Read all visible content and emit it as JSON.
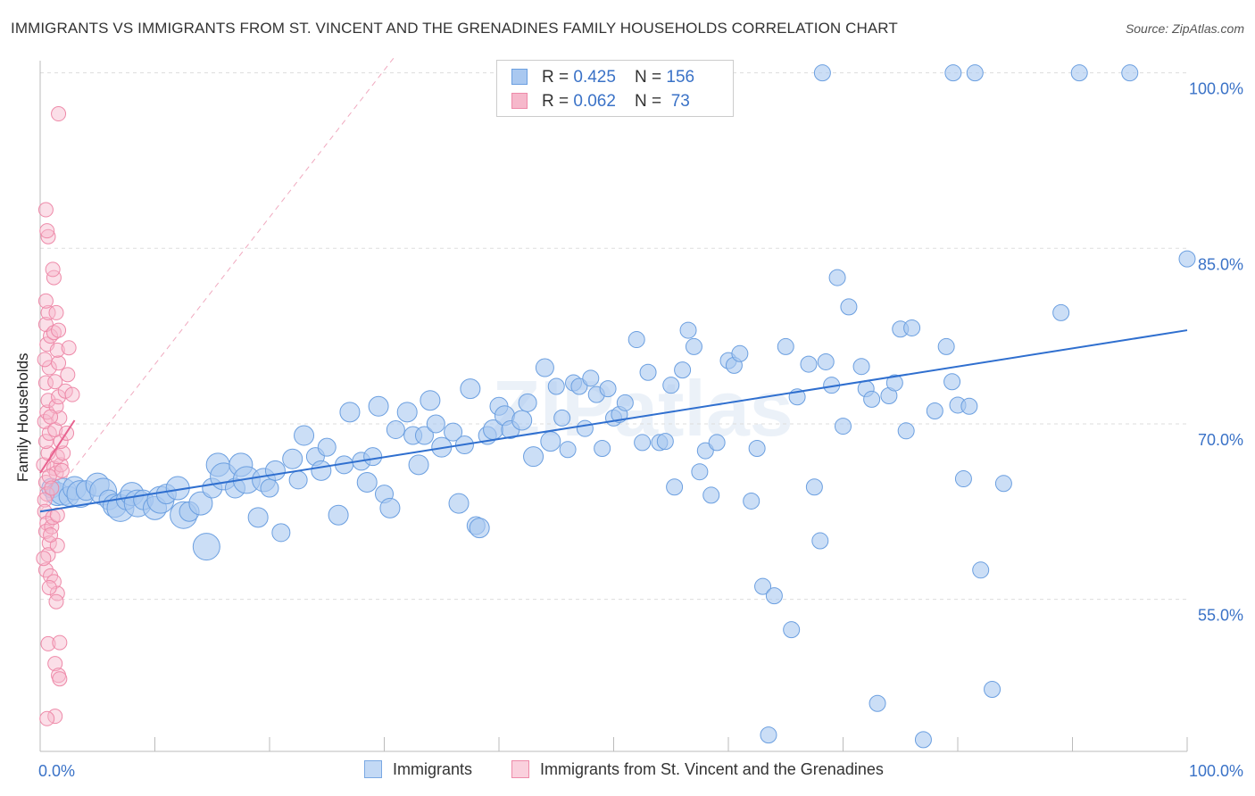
{
  "title": "IMMIGRANTS VS IMMIGRANTS FROM ST. VINCENT AND THE GRENADINES FAMILY HOUSEHOLDS CORRELATION CHART",
  "source": "Source: ZipAtlas.com",
  "watermark": "ZIPatlas",
  "colors": {
    "blue_fill": "#a9c8f0",
    "blue_stroke": "#6b9fe0",
    "blue_line": "#2f6fcf",
    "pink_fill": "#f6b8cb",
    "pink_stroke": "#ee8aa9",
    "pink_line": "#e8628f",
    "axis_text": "#3a72c7",
    "grid": "#dddddd"
  },
  "legend": {
    "rows": [
      {
        "r_label": "R = ",
        "r_value": "0.425",
        "n_label": "N = ",
        "n_value": "156"
      },
      {
        "r_label": "R = ",
        "r_value": "0.062",
        "n_label": "N = ",
        "n_value": " 73"
      }
    ]
  },
  "bottom_legend": {
    "series1": "Immigrants",
    "series2": "Immigrants from St. Vincent and the Grenadines"
  },
  "chart_data": {
    "type": "scatter",
    "ylabel": "Family Households",
    "xlim": [
      0,
      100
    ],
    "ylim": [
      42,
      101.5
    ],
    "x_tick_labels": [
      {
        "value": 0,
        "label": "0.0%"
      },
      {
        "value": 100,
        "label": "100.0%"
      }
    ],
    "y_tick_labels": [
      {
        "value": 55,
        "label": "55.0%"
      },
      {
        "value": 70,
        "label": "70.0%"
      },
      {
        "value": 85,
        "label": "85.0%"
      },
      {
        "value": 100,
        "label": "100.0%"
      }
    ],
    "y_gridlines": [
      55,
      70,
      85,
      100
    ],
    "series": [
      {
        "name": "Immigrants",
        "color": "blue",
        "trend": {
          "x": [
            0,
            100
          ],
          "y": [
            62.5,
            78.0
          ]
        },
        "points": [
          [
            1,
            64.5
          ],
          [
            1.5,
            64
          ],
          [
            2,
            64.2
          ],
          [
            2.5,
            63.8
          ],
          [
            3,
            64.5
          ],
          [
            3.5,
            64
          ],
          [
            4,
            64.3
          ],
          [
            5,
            64.8
          ],
          [
            5.5,
            64.2
          ],
          [
            6,
            63.5
          ],
          [
            6.5,
            63
          ],
          [
            7,
            62.8
          ],
          [
            7.5,
            63.5
          ],
          [
            8,
            64
          ],
          [
            8.5,
            63.2
          ],
          [
            9,
            63.5
          ],
          [
            10,
            62.8
          ],
          [
            10.5,
            63.5
          ],
          [
            11,
            64
          ],
          [
            12,
            64.5
          ],
          [
            12.5,
            62.2
          ],
          [
            13,
            62.5
          ],
          [
            14,
            63.2
          ],
          [
            14.5,
            59.5
          ],
          [
            15,
            64.5
          ],
          [
            15.5,
            66.5
          ],
          [
            16,
            65.5
          ],
          [
            17,
            64.5
          ],
          [
            17.5,
            66.5
          ],
          [
            18,
            65.2
          ],
          [
            19,
            62
          ],
          [
            19.5,
            65.2
          ],
          [
            20,
            64.5
          ],
          [
            20.5,
            66
          ],
          [
            21,
            60.7
          ],
          [
            22,
            67
          ],
          [
            22.5,
            65.2
          ],
          [
            23,
            69
          ],
          [
            24,
            67.2
          ],
          [
            24.5,
            66
          ],
          [
            25,
            68
          ],
          [
            26,
            62.2
          ],
          [
            26.5,
            66.5
          ],
          [
            27,
            71
          ],
          [
            28,
            66.8
          ],
          [
            28.5,
            65
          ],
          [
            29,
            67.2
          ],
          [
            29.5,
            71.5
          ],
          [
            30,
            64
          ],
          [
            30.5,
            62.8
          ],
          [
            31,
            69.5
          ],
          [
            32,
            71
          ],
          [
            32.5,
            69
          ],
          [
            33,
            66.5
          ],
          [
            33.5,
            69
          ],
          [
            34,
            72
          ],
          [
            34.5,
            70
          ],
          [
            35,
            68
          ],
          [
            36,
            69.3
          ],
          [
            36.5,
            63.2
          ],
          [
            37,
            68.2
          ],
          [
            37.5,
            73
          ],
          [
            38,
            61.3
          ],
          [
            38.3,
            61.1
          ],
          [
            39,
            69
          ],
          [
            39.5,
            69.5
          ],
          [
            40,
            71.5
          ],
          [
            40.5,
            70.7
          ],
          [
            41,
            69.5
          ],
          [
            42,
            70.3
          ],
          [
            42.5,
            71.8
          ],
          [
            43,
            67.2
          ],
          [
            44,
            74.8
          ],
          [
            44.5,
            68.5
          ],
          [
            45,
            73.2
          ],
          [
            45.5,
            70.5
          ],
          [
            46,
            67.8
          ],
          [
            46.5,
            73.5
          ],
          [
            47,
            73.2
          ],
          [
            47.5,
            69.6
          ],
          [
            48,
            73.9
          ],
          [
            48.5,
            72.5
          ],
          [
            49,
            67.9
          ],
          [
            49.5,
            73
          ],
          [
            50,
            70.5
          ],
          [
            50.5,
            70.8
          ],
          [
            51,
            71.8
          ],
          [
            52,
            77.2
          ],
          [
            52.5,
            68.4
          ],
          [
            53,
            74.4
          ],
          [
            54,
            68.4
          ],
          [
            54.5,
            68.5
          ],
          [
            55,
            73.3
          ],
          [
            55.3,
            64.6
          ],
          [
            56,
            74.6
          ],
          [
            56.5,
            78
          ],
          [
            57,
            76.6
          ],
          [
            57.5,
            65.9
          ],
          [
            58,
            67.7
          ],
          [
            58.5,
            63.9
          ],
          [
            59,
            68.4
          ],
          [
            60,
            75.4
          ],
          [
            60.5,
            75
          ],
          [
            61,
            76
          ],
          [
            62,
            63.4
          ],
          [
            62.5,
            67.9
          ],
          [
            63,
            56.1
          ],
          [
            64,
            55.3
          ],
          [
            65,
            76.6
          ],
          [
            65.5,
            52.4
          ],
          [
            66,
            72.3
          ],
          [
            67,
            75.1
          ],
          [
            67.5,
            64.6
          ],
          [
            68,
            60
          ],
          [
            68.5,
            75.3
          ],
          [
            69,
            73.3
          ],
          [
            69.5,
            82.5
          ],
          [
            70,
            69.8
          ],
          [
            70.5,
            80
          ],
          [
            72,
            73
          ],
          [
            72.5,
            72.1
          ],
          [
            73,
            46.1
          ],
          [
            74,
            72.4
          ],
          [
            74.5,
            73.5
          ],
          [
            75,
            78.1
          ],
          [
            75.5,
            69.4
          ],
          [
            76,
            78.2
          ],
          [
            77,
            43
          ],
          [
            78,
            71.1
          ],
          [
            79,
            76.6
          ],
          [
            79.5,
            73.6
          ],
          [
            80,
            71.6
          ],
          [
            80.5,
            65.3
          ],
          [
            81,
            71.5
          ],
          [
            82,
            57.5
          ],
          [
            83,
            47.3
          ],
          [
            84,
            64.9
          ],
          [
            63.5,
            43.4
          ],
          [
            68.2,
            100
          ],
          [
            79.6,
            100
          ],
          [
            81.5,
            100
          ],
          [
            90.6,
            100
          ],
          [
            95,
            100
          ],
          [
            89,
            79.5
          ],
          [
            100,
            84.1
          ],
          [
            71.6,
            74.9
          ]
        ]
      },
      {
        "name": "Immigrants from St. Vincent and the Grenadines",
        "color": "pink",
        "trend": {
          "x": [
            0,
            3
          ],
          "y": [
            65.8,
            70.3
          ]
        },
        "points": [
          [
            0.3,
            66.5
          ],
          [
            0.5,
            65
          ],
          [
            0.6,
            64
          ],
          [
            0.4,
            63.5
          ],
          [
            0.7,
            67.5
          ],
          [
            0.5,
            68.5
          ],
          [
            0.8,
            69.2
          ],
          [
            0.4,
            70.2
          ],
          [
            0.6,
            71
          ],
          [
            0.7,
            72
          ],
          [
            0.5,
            73.5
          ],
          [
            0.8,
            74.8
          ],
          [
            0.4,
            75.5
          ],
          [
            0.6,
            76.8
          ],
          [
            0.9,
            77.5
          ],
          [
            0.5,
            78.5
          ],
          [
            0.7,
            79.5
          ],
          [
            0.5,
            80.5
          ],
          [
            1.2,
            82.5
          ],
          [
            1.1,
            83.2
          ],
          [
            0.7,
            86
          ],
          [
            0.6,
            86.5
          ],
          [
            0.5,
            88.3
          ],
          [
            1.6,
            96.5
          ],
          [
            0.4,
            62.5
          ],
          [
            0.6,
            61.5
          ],
          [
            0.5,
            60.8
          ],
          [
            0.8,
            59.8
          ],
          [
            0.7,
            58.8
          ],
          [
            0.5,
            57.5
          ],
          [
            0.9,
            57
          ],
          [
            1.2,
            56.5
          ],
          [
            1.5,
            55.5
          ],
          [
            0.8,
            56
          ],
          [
            1.4,
            54.8
          ],
          [
            0.7,
            51.2
          ],
          [
            1.7,
            51.3
          ],
          [
            1.3,
            49.5
          ],
          [
            1.6,
            48.5
          ],
          [
            1.7,
            48.2
          ],
          [
            1.3,
            45
          ],
          [
            0.6,
            44.8
          ],
          [
            1.2,
            66.2
          ],
          [
            1.4,
            65.8
          ],
          [
            1.8,
            66.5
          ],
          [
            1.5,
            67.2
          ],
          [
            2,
            67.5
          ],
          [
            1.8,
            68.5
          ],
          [
            1.3,
            69.5
          ],
          [
            1.7,
            70.5
          ],
          [
            1.4,
            71.5
          ],
          [
            1.6,
            72.3
          ],
          [
            2.2,
            72.8
          ],
          [
            1.3,
            73.6
          ],
          [
            2.4,
            74.2
          ],
          [
            1.6,
            75.2
          ],
          [
            1.5,
            76.3
          ],
          [
            2.5,
            76.5
          ],
          [
            1.2,
            77.8
          ],
          [
            1.6,
            78
          ],
          [
            1.4,
            79.5
          ],
          [
            2.8,
            72.5
          ],
          [
            2.3,
            69.2
          ],
          [
            0.8,
            65.5
          ],
          [
            1.0,
            64.5
          ],
          [
            1.5,
            59.6
          ],
          [
            1.0,
            61.2
          ],
          [
            0.9,
            60.5
          ],
          [
            0.3,
            58.5
          ],
          [
            1.1,
            62.0
          ],
          [
            1.9,
            66.0
          ],
          [
            1.5,
            62.2
          ],
          [
            0.9,
            70.6
          ]
        ]
      }
    ],
    "reference_line": {
      "style": "dashed",
      "x": [
        0,
        31
      ],
      "y": [
        62.5,
        101.5
      ]
    }
  }
}
